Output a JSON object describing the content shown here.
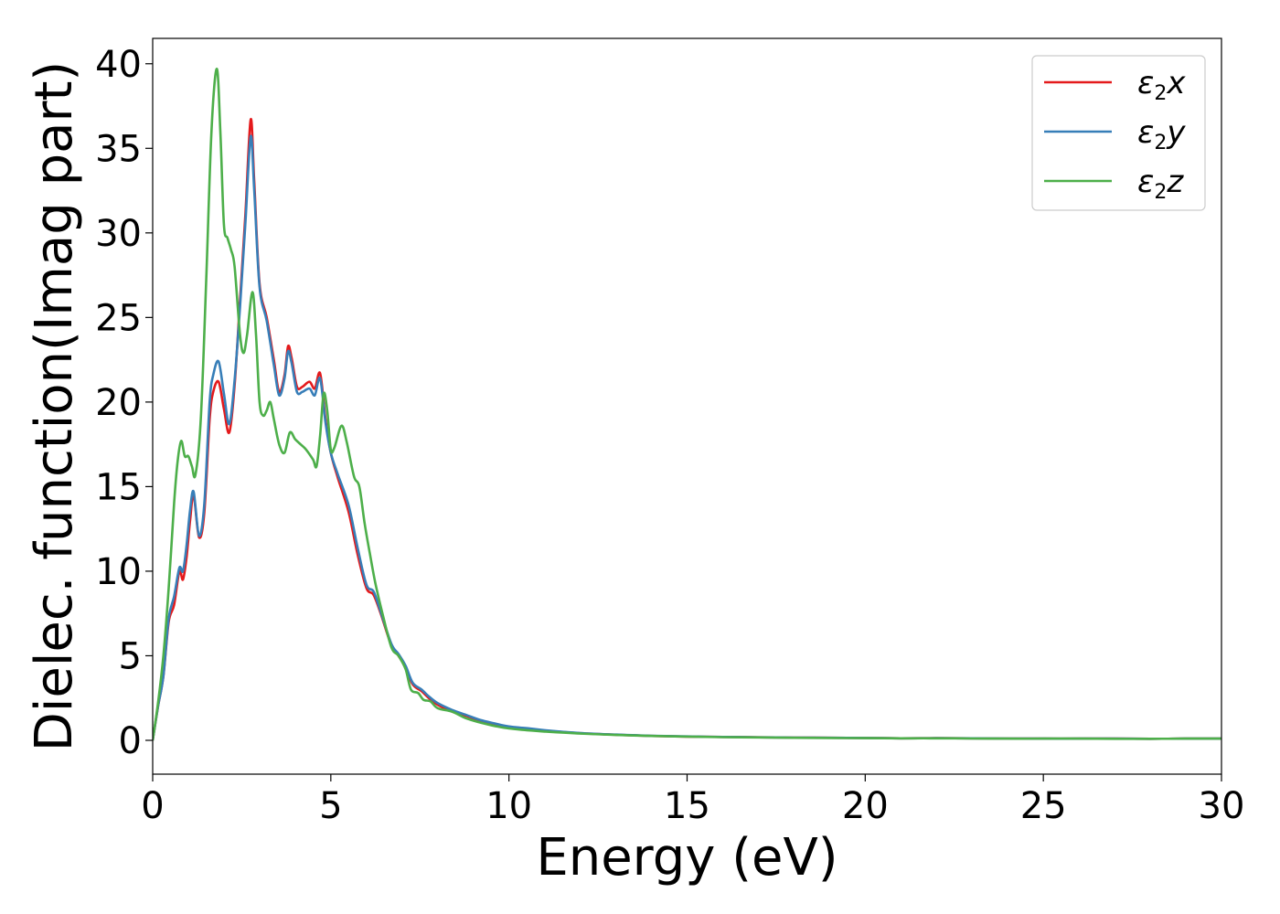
{
  "chart_data": {
    "type": "line",
    "title": "",
    "xlabel": "Energy (eV)",
    "ylabel": "Dielec. function(Imag part)",
    "xlim": [
      0,
      30
    ],
    "ylim": [
      -2,
      41.5
    ],
    "xticks": [
      0,
      5,
      10,
      15,
      20,
      25,
      30
    ],
    "xtick_labels": [
      "0",
      "5",
      "10",
      "15",
      "20",
      "25",
      "30"
    ],
    "yticks": [
      0,
      5,
      10,
      15,
      20,
      25,
      30,
      35,
      40
    ],
    "ytick_labels": [
      "0",
      "5",
      "10",
      "15",
      "20",
      "25",
      "30",
      "35",
      "40"
    ],
    "grid": false,
    "legend_position": "top-right",
    "series": [
      {
        "name": "ε2x",
        "legend_symbol": "ε",
        "legend_sub": "2",
        "legend_suffix": "x",
        "color": "#e41a1c",
        "points": [
          [
            0,
            0
          ],
          [
            0.15,
            2
          ],
          [
            0.3,
            3.8
          ],
          [
            0.45,
            7
          ],
          [
            0.6,
            8
          ],
          [
            0.75,
            10
          ],
          [
            0.85,
            9.5
          ],
          [
            0.95,
            10.8
          ],
          [
            1.05,
            13
          ],
          [
            1.15,
            14.5
          ],
          [
            1.3,
            12
          ],
          [
            1.45,
            13.5
          ],
          [
            1.6,
            19
          ],
          [
            1.7,
            20.6
          ],
          [
            1.85,
            21.2
          ],
          [
            2.0,
            19.6
          ],
          [
            2.15,
            18.2
          ],
          [
            2.3,
            21
          ],
          [
            2.45,
            26
          ],
          [
            2.6,
            31
          ],
          [
            2.75,
            36.7
          ],
          [
            2.85,
            33
          ],
          [
            3.0,
            27
          ],
          [
            3.2,
            25
          ],
          [
            3.4,
            22.5
          ],
          [
            3.55,
            20.6
          ],
          [
            3.7,
            21.6
          ],
          [
            3.8,
            23.3
          ],
          [
            3.9,
            22.6
          ],
          [
            4.05,
            20.9
          ],
          [
            4.2,
            20.9
          ],
          [
            4.4,
            21.2
          ],
          [
            4.55,
            20.8
          ],
          [
            4.7,
            21.7
          ],
          [
            4.85,
            19
          ],
          [
            5.0,
            17
          ],
          [
            5.2,
            15.5
          ],
          [
            5.5,
            13.5
          ],
          [
            5.75,
            11
          ],
          [
            6.0,
            9
          ],
          [
            6.2,
            8.6
          ],
          [
            6.4,
            7.5
          ],
          [
            6.7,
            5.6
          ],
          [
            6.9,
            5
          ],
          [
            7.1,
            4.3
          ],
          [
            7.3,
            3.3
          ],
          [
            7.55,
            2.9
          ],
          [
            7.75,
            2.5
          ],
          [
            8.0,
            2.1
          ],
          [
            8.4,
            1.7
          ],
          [
            8.8,
            1.45
          ],
          [
            9.2,
            1.15
          ],
          [
            9.6,
            0.95
          ],
          [
            10,
            0.8
          ],
          [
            10.5,
            0.7
          ],
          [
            11,
            0.58
          ],
          [
            12,
            0.42
          ],
          [
            13,
            0.33
          ],
          [
            14,
            0.26
          ],
          [
            15,
            0.22
          ],
          [
            16,
            0.2
          ],
          [
            17,
            0.18
          ],
          [
            18,
            0.16
          ],
          [
            19,
            0.15
          ],
          [
            20,
            0.14
          ],
          [
            21,
            0.12
          ],
          [
            22,
            0.13
          ],
          [
            23,
            0.12
          ],
          [
            24,
            0.11
          ],
          [
            25,
            0.1
          ],
          [
            26,
            0.1
          ],
          [
            27,
            0.1
          ],
          [
            28,
            0.09
          ],
          [
            29,
            0.1
          ],
          [
            30,
            0.1
          ]
        ]
      },
      {
        "name": "ε2y",
        "legend_symbol": "ε",
        "legend_sub": "2",
        "legend_suffix": "y",
        "color": "#377eb8",
        "points": [
          [
            0,
            0
          ],
          [
            0.15,
            2
          ],
          [
            0.3,
            3.8
          ],
          [
            0.45,
            7.2
          ],
          [
            0.6,
            8.5
          ],
          [
            0.75,
            10.2
          ],
          [
            0.85,
            10
          ],
          [
            0.95,
            11.5
          ],
          [
            1.05,
            13.6
          ],
          [
            1.15,
            14.7
          ],
          [
            1.3,
            12.1
          ],
          [
            1.45,
            14
          ],
          [
            1.6,
            20
          ],
          [
            1.7,
            21.6
          ],
          [
            1.85,
            22.4
          ],
          [
            2.0,
            20.5
          ],
          [
            2.15,
            18.7
          ],
          [
            2.3,
            21.3
          ],
          [
            2.45,
            25.6
          ],
          [
            2.6,
            30.5
          ],
          [
            2.75,
            35.7
          ],
          [
            2.85,
            32.5
          ],
          [
            3.0,
            26.8
          ],
          [
            3.2,
            24.8
          ],
          [
            3.4,
            22.2
          ],
          [
            3.55,
            20.4
          ],
          [
            3.7,
            21.4
          ],
          [
            3.8,
            23
          ],
          [
            3.9,
            22.3
          ],
          [
            4.05,
            20.6
          ],
          [
            4.2,
            20.6
          ],
          [
            4.4,
            20.8
          ],
          [
            4.55,
            20.4
          ],
          [
            4.7,
            21.4
          ],
          [
            4.85,
            18.8
          ],
          [
            5.0,
            17
          ],
          [
            5.2,
            15.7
          ],
          [
            5.5,
            13.9
          ],
          [
            5.75,
            11.4
          ],
          [
            6.0,
            9.2
          ],
          [
            6.2,
            8.8
          ],
          [
            6.4,
            7.6
          ],
          [
            6.7,
            5.7
          ],
          [
            6.9,
            5.1
          ],
          [
            7.1,
            4.4
          ],
          [
            7.3,
            3.4
          ],
          [
            7.55,
            3
          ],
          [
            7.75,
            2.6
          ],
          [
            8.0,
            2.2
          ],
          [
            8.4,
            1.8
          ],
          [
            8.8,
            1.5
          ],
          [
            9.2,
            1.2
          ],
          [
            9.6,
            1
          ],
          [
            10,
            0.82
          ],
          [
            10.5,
            0.72
          ],
          [
            11,
            0.6
          ],
          [
            12,
            0.43
          ],
          [
            13,
            0.34
          ],
          [
            14,
            0.27
          ],
          [
            15,
            0.23
          ],
          [
            16,
            0.2
          ],
          [
            17,
            0.18
          ],
          [
            18,
            0.16
          ],
          [
            19,
            0.15
          ],
          [
            20,
            0.14
          ],
          [
            21,
            0.12
          ],
          [
            22,
            0.13
          ],
          [
            23,
            0.12
          ],
          [
            24,
            0.11
          ],
          [
            25,
            0.1
          ],
          [
            26,
            0.1
          ],
          [
            27,
            0.1
          ],
          [
            28,
            0.09
          ],
          [
            29,
            0.1
          ],
          [
            30,
            0.1
          ]
        ]
      },
      {
        "name": "ε2z",
        "legend_symbol": "ε",
        "legend_sub": "2",
        "legend_suffix": "z",
        "color": "#4daf4a",
        "points": [
          [
            0,
            0
          ],
          [
            0.15,
            2.2
          ],
          [
            0.3,
            5
          ],
          [
            0.45,
            9
          ],
          [
            0.6,
            14
          ],
          [
            0.7,
            16.5
          ],
          [
            0.8,
            17.7
          ],
          [
            0.9,
            16.8
          ],
          [
            1.0,
            16.8
          ],
          [
            1.1,
            16.2
          ],
          [
            1.2,
            15.7
          ],
          [
            1.35,
            19
          ],
          [
            1.5,
            27
          ],
          [
            1.65,
            36
          ],
          [
            1.8,
            39.7
          ],
          [
            1.9,
            36
          ],
          [
            2.0,
            30.5
          ],
          [
            2.1,
            29.7
          ],
          [
            2.2,
            29
          ],
          [
            2.3,
            28
          ],
          [
            2.45,
            24
          ],
          [
            2.55,
            22.9
          ],
          [
            2.65,
            24
          ],
          [
            2.8,
            26.5
          ],
          [
            2.9,
            24
          ],
          [
            3.0,
            20
          ],
          [
            3.1,
            19.2
          ],
          [
            3.2,
            19.5
          ],
          [
            3.3,
            20
          ],
          [
            3.4,
            19
          ],
          [
            3.55,
            17.5
          ],
          [
            3.7,
            17
          ],
          [
            3.85,
            18.2
          ],
          [
            4.0,
            17.8
          ],
          [
            4.15,
            17.5
          ],
          [
            4.3,
            17.2
          ],
          [
            4.5,
            16.6
          ],
          [
            4.6,
            16.2
          ],
          [
            4.7,
            18
          ],
          [
            4.8,
            20.5
          ],
          [
            4.9,
            19.5
          ],
          [
            5.0,
            17.2
          ],
          [
            5.1,
            17.3
          ],
          [
            5.3,
            18.6
          ],
          [
            5.45,
            17.6
          ],
          [
            5.65,
            15.6
          ],
          [
            5.8,
            15
          ],
          [
            5.95,
            12.8
          ],
          [
            6.1,
            11
          ],
          [
            6.25,
            9.3
          ],
          [
            6.45,
            7.5
          ],
          [
            6.7,
            5.5
          ],
          [
            6.9,
            5
          ],
          [
            7.1,
            4.2
          ],
          [
            7.25,
            3
          ],
          [
            7.45,
            2.8
          ],
          [
            7.6,
            2.4
          ],
          [
            7.8,
            2.3
          ],
          [
            8.0,
            1.9
          ],
          [
            8.4,
            1.7
          ],
          [
            8.8,
            1.3
          ],
          [
            9.2,
            1.05
          ],
          [
            9.6,
            0.85
          ],
          [
            10,
            0.7
          ],
          [
            10.5,
            0.6
          ],
          [
            11,
            0.52
          ],
          [
            12,
            0.4
          ],
          [
            13,
            0.32
          ],
          [
            14,
            0.26
          ],
          [
            15,
            0.22
          ],
          [
            16,
            0.19
          ],
          [
            17,
            0.17
          ],
          [
            18,
            0.15
          ],
          [
            19,
            0.14
          ],
          [
            20,
            0.13
          ],
          [
            21,
            0.12
          ],
          [
            22,
            0.12
          ],
          [
            23,
            0.11
          ],
          [
            24,
            0.1
          ],
          [
            25,
            0.1
          ],
          [
            26,
            0.1
          ],
          [
            27,
            0.09
          ],
          [
            28,
            0.09
          ],
          [
            29,
            0.1
          ],
          [
            30,
            0.1
          ]
        ]
      }
    ]
  }
}
